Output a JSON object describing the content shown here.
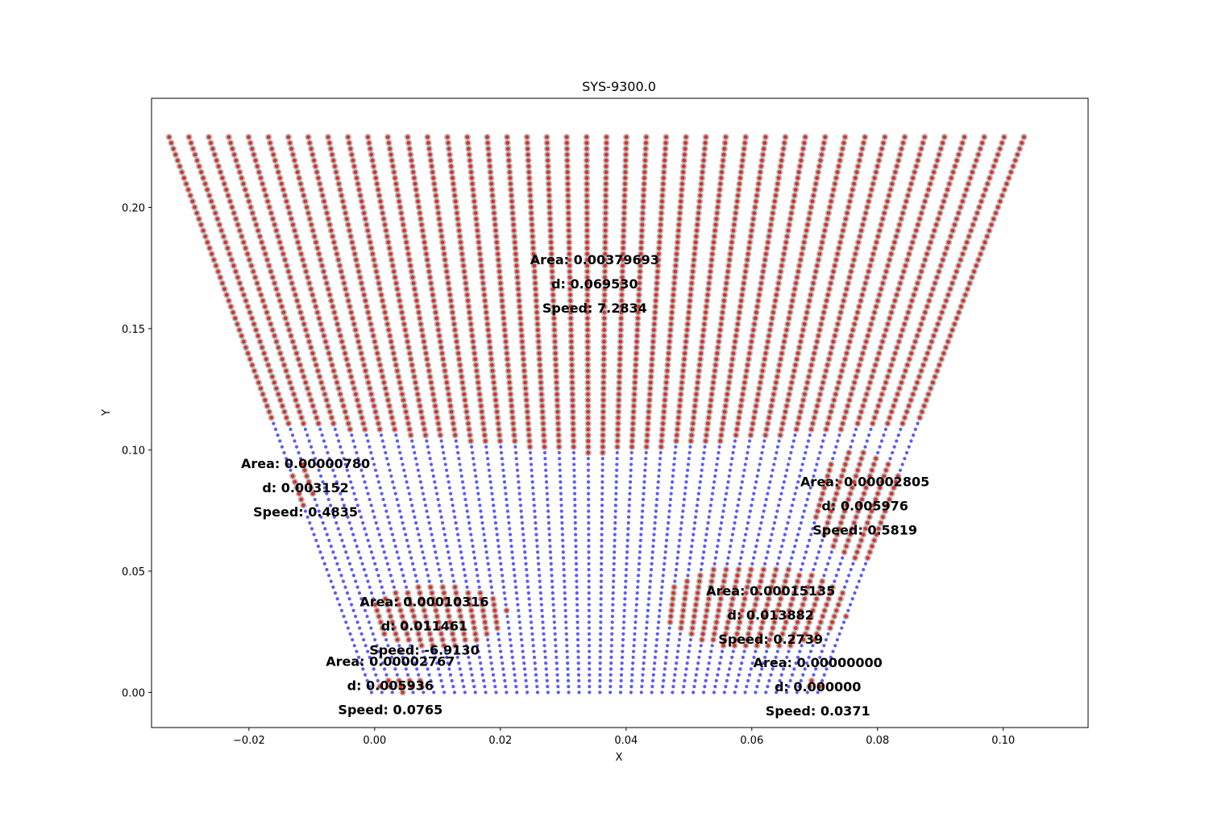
{
  "chart_data": {
    "type": "scatter",
    "title": "SYS-9300.0",
    "xlabel": "X",
    "ylabel": "Y",
    "xlim": [
      -0.0355,
      0.1135
    ],
    "ylim": [
      -0.0145,
      0.245
    ],
    "grid": false,
    "xticks": [
      -0.02,
      0.0,
      0.02,
      0.04,
      0.06,
      0.08,
      0.1
    ],
    "xtick_labels": [
      "−0.02",
      "0.00",
      "0.02",
      "0.04",
      "0.06",
      "0.08",
      "0.10"
    ],
    "yticks": [
      0.0,
      0.05,
      0.1,
      0.15,
      0.2
    ],
    "ytick_labels": [
      "0.00",
      "0.05",
      "0.10",
      "0.15",
      "0.20"
    ],
    "colors": {
      "base": "#3d3df5",
      "flagged": "#d9302b",
      "halo": "#aaaaaa"
    },
    "geometry": {
      "n_lines": 44,
      "top_y": 0.229,
      "top_x_range": [
        -0.0327,
        0.1033
      ],
      "bottom_y": 0.0,
      "bottom_x_range": [
        -0.0005,
        0.0705
      ],
      "upper_region_min_y": 0.098,
      "upper_region_max_y_edge": 0.111
    },
    "clusters": [
      {
        "label": "upper",
        "center": [
          0.035,
          0.165
        ],
        "x_range": [
          -0.0327,
          0.1033
        ],
        "y_range": [
          0.098,
          0.229
        ]
      },
      {
        "label": "left-upper",
        "center": [
          -0.0115,
          0.085
        ],
        "x_range": [
          -0.0135,
          -0.0095
        ],
        "y_range": [
          0.075,
          0.095
        ]
      },
      {
        "label": "left-lower",
        "center": [
          0.008,
          0.03
        ],
        "x_range": [
          -0.0005,
          0.021
        ],
        "y_range": [
          0.019,
          0.044
        ]
      },
      {
        "label": "left-bottom",
        "center": [
          0.004,
          0.003
        ],
        "x_range": [
          0.0,
          0.008
        ],
        "y_range": [
          0.0,
          0.006
        ]
      },
      {
        "label": "right-upper",
        "center": [
          0.078,
          0.075
        ],
        "x_range": [
          0.07,
          0.0845
        ],
        "y_range": [
          0.055,
          0.099
        ]
      },
      {
        "label": "right-lower",
        "center": [
          0.063,
          0.033
        ],
        "x_range": [
          0.046,
          0.075
        ],
        "y_range": [
          0.018,
          0.052
        ]
      },
      {
        "label": "right-bottom",
        "center": [
          0.07,
          0.002
        ],
        "x_range": [
          0.068,
          0.072
        ],
        "y_range": [
          0.0,
          0.005
        ]
      }
    ],
    "annotations": [
      {
        "lines": [
          "Area: 0.00379693",
          "d: 0.069530",
          "Speed: 7.2834"
        ],
        "x": 0.035,
        "y": 0.1685
      },
      {
        "lines": [
          "Area: 0.00000780",
          "d: 0.003152",
          "Speed: 0.4835"
        ],
        "x": -0.011,
        "y": 0.0845
      },
      {
        "lines": [
          "Area: 0.00002805",
          "d: 0.005976",
          "Speed: 0.5819"
        ],
        "x": 0.078,
        "y": 0.077
      },
      {
        "lines": [
          "Area: 0.00010316",
          "d: 0.011461",
          "Speed: -6.9130"
        ],
        "x": 0.0079,
        "y": 0.0275
      },
      {
        "lines": [
          "Area: 0.00015135",
          "d: 0.013882",
          "Speed: 0.2739"
        ],
        "x": 0.063,
        "y": 0.032
      },
      {
        "lines": [
          "Area: 0.00002767",
          "d: 0.005936",
          "Speed: 0.0765"
        ],
        "x": 0.0025,
        "y": 0.003
      },
      {
        "lines": [
          "Area: 0.00000000",
          "d: 0.000000",
          "Speed: 0.0371"
        ],
        "x": 0.0705,
        "y": 0.0025
      }
    ]
  }
}
